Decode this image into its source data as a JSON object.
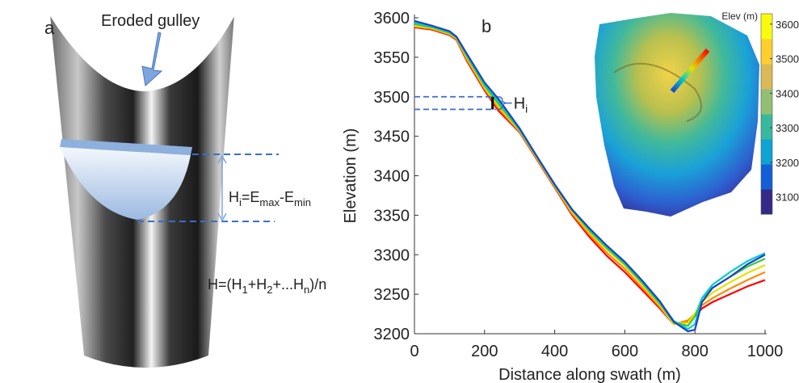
{
  "diagram": {
    "panel_label": "a",
    "arrow_label": "Eroded gulley",
    "height_formula": [
      "H",
      "i",
      "=E",
      "max",
      "-E",
      "min"
    ],
    "mean_formula": [
      "H=(H",
      "1",
      "+H",
      "2",
      "+...H",
      "n",
      ")/n"
    ]
  },
  "chart_data": {
    "type": "line",
    "panel_label": "b",
    "x_label": "Distance along swath (m)",
    "y_label": "Elevation (m)",
    "x": [
      0,
      50,
      100,
      120,
      150,
      200,
      240,
      300,
      350,
      400,
      450,
      500,
      550,
      600,
      650,
      700,
      740,
      780,
      800,
      820,
      850,
      900,
      950,
      1000
    ],
    "series": [
      {
        "color": "#ff0000",
        "values": [
          3588,
          3585,
          3578,
          3572,
          3545,
          3508,
          3482,
          3455,
          3420,
          3385,
          3350,
          3322,
          3298,
          3278,
          3255,
          3232,
          3212,
          3215,
          3222,
          3232,
          3240,
          3250,
          3260,
          3268
        ]
      },
      {
        "color": "#ff8c00",
        "values": [
          3589,
          3586,
          3579,
          3573,
          3547,
          3510,
          3485,
          3456,
          3421,
          3386,
          3352,
          3325,
          3302,
          3282,
          3258,
          3234,
          3212,
          3217,
          3225,
          3236,
          3245,
          3257,
          3268,
          3278
        ]
      },
      {
        "color": "#e8e000",
        "values": [
          3590,
          3587,
          3580,
          3574,
          3549,
          3512,
          3488,
          3457,
          3422,
          3387,
          3354,
          3328,
          3306,
          3286,
          3262,
          3236,
          3212,
          3214,
          3225,
          3240,
          3252,
          3265,
          3277,
          3287
        ]
      },
      {
        "color": "#33cc33",
        "values": [
          3592,
          3588,
          3581,
          3575,
          3551,
          3514,
          3491,
          3458,
          3423,
          3388,
          3356,
          3330,
          3308,
          3288,
          3264,
          3238,
          3214,
          3210,
          3222,
          3245,
          3258,
          3272,
          3285,
          3295
        ]
      },
      {
        "color": "#00cccc",
        "values": [
          3594,
          3589,
          3582,
          3576,
          3553,
          3516,
          3494,
          3459,
          3424,
          3389,
          3357,
          3332,
          3310,
          3290,
          3266,
          3240,
          3216,
          3206,
          3212,
          3245,
          3262,
          3278,
          3292,
          3302
        ]
      },
      {
        "color": "#1f3fd0",
        "values": [
          3596,
          3590,
          3583,
          3576,
          3554,
          3518,
          3497,
          3460,
          3424,
          3389,
          3357,
          3333,
          3311,
          3291,
          3267,
          3241,
          3215,
          3203,
          3205,
          3240,
          3258,
          3272,
          3288,
          3300
        ]
      }
    ],
    "xlim": [
      0,
      1000
    ],
    "xticks": [
      0,
      200,
      400,
      600,
      800,
      1000
    ],
    "ylim": [
      3200,
      3600
    ],
    "yticks": [
      3200,
      3250,
      3300,
      3350,
      3400,
      3450,
      3500,
      3550,
      3600
    ],
    "annotation": {
      "text": "H",
      "sub": "i",
      "levels": [
        3500,
        3484
      ],
      "x": 232
    },
    "colorbar": {
      "title": "Elev (m)",
      "lim": [
        3050,
        3630
      ],
      "ticks": [
        3100,
        3200,
        3300,
        3400,
        3500,
        3600
      ],
      "colors": [
        "#352a87",
        "#1360d6",
        "#0ea4d2",
        "#38b99e",
        "#92bf73",
        "#d9ba56",
        "#fcce2e",
        "#f9fb0e"
      ]
    }
  }
}
